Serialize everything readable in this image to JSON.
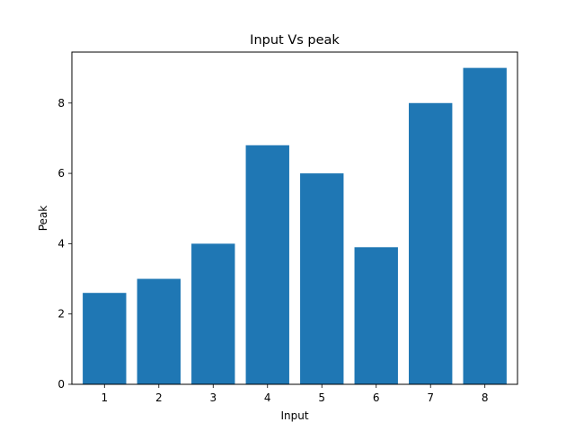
{
  "chart_data": {
    "type": "bar",
    "title": "Input Vs peak",
    "xlabel": "Input",
    "ylabel": "Peak",
    "categories": [
      "1",
      "2",
      "3",
      "4",
      "5",
      "6",
      "7",
      "8"
    ],
    "values": [
      2.6,
      3.0,
      4.0,
      6.8,
      6.0,
      3.9,
      8.0,
      9.0
    ],
    "ylim": [
      0,
      9.45
    ],
    "yticks": [
      0,
      2,
      4,
      6,
      8
    ],
    "grid": false,
    "bar_color": "#1f77b4"
  }
}
